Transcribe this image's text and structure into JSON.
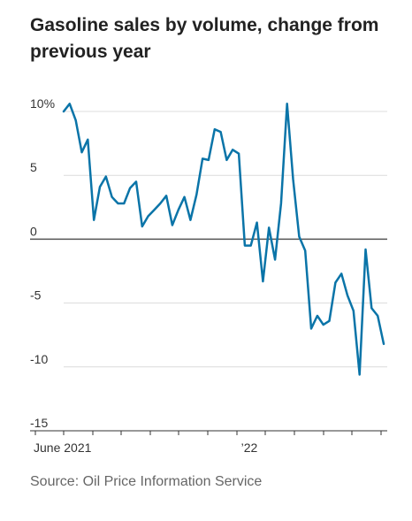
{
  "title": "Gasoline sales by volume, change from previous year",
  "source": "Source: Oil Price Information Service",
  "chart_data": {
    "type": "line",
    "title": "Gasoline sales by volume, change from previous year",
    "xlabel": "",
    "ylabel": "",
    "ylim": [
      -15,
      10
    ],
    "yticks": [
      10,
      5,
      0,
      -5,
      -10,
      -15
    ],
    "ytick_labels": [
      "10%",
      "5",
      "0",
      "-5",
      "-10",
      "-15"
    ],
    "xtick_labels": [
      "June 2021",
      "’22"
    ],
    "grid": true,
    "zero_line": true,
    "color": "#0a74a8",
    "series": [
      {
        "values": [
          10,
          10.6,
          9.3,
          6.8,
          7.8,
          1.5,
          4.1,
          4.9,
          3.3,
          2.8,
          2.8,
          4,
          4.5,
          1,
          1.8,
          2.3,
          2.8,
          3.4,
          1.1,
          2.3,
          3.3,
          1.5,
          3.5,
          6.3,
          6.2,
          8.6,
          8.4,
          6.2,
          7,
          6.7,
          -0.5,
          -0.5,
          1.3,
          -3.3,
          0.9,
          -1.6,
          2.8,
          10.6,
          4.7,
          0.2,
          -0.9,
          -7,
          -6,
          -6.7,
          -6.4,
          -3.4,
          -2.7,
          -4.4,
          -5.6,
          -10.6,
          -0.8,
          -5.4,
          -6,
          -8.2
        ]
      }
    ]
  }
}
